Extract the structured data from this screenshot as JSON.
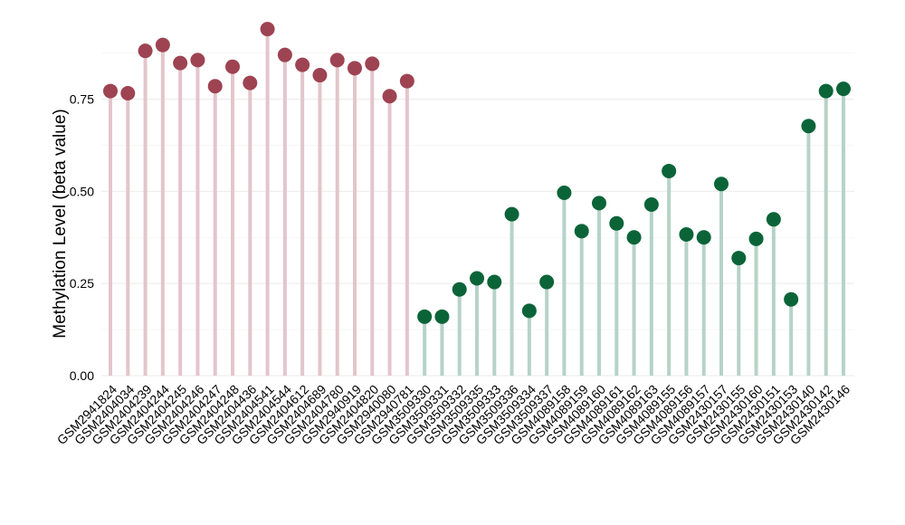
{
  "chart_data": {
    "type": "lollipop",
    "title": "",
    "xlabel": "",
    "ylabel": "Methylation Level (beta value)",
    "ylim": [
      0,
      0.96
    ],
    "yticks": [
      "0.00",
      "0.25",
      "0.50",
      "0.75"
    ],
    "grid": true,
    "legend": "none",
    "series": [
      {
        "color": "#9e4352",
        "stem_color": "#e3c5cb",
        "categories": [
          "GSM2941824",
          "GSM2404034",
          "GSM2404239",
          "GSM2404244",
          "GSM2404245",
          "GSM2404246",
          "GSM2404247",
          "GSM2404248",
          "GSM2404436",
          "GSM2404541",
          "GSM2404544",
          "GSM2404612",
          "GSM2404689",
          "GSM2404780",
          "GSM2940919",
          "GSM2404820",
          "GSM2940080",
          "GSM2940781"
        ],
        "values": [
          0.772,
          0.766,
          0.881,
          0.897,
          0.848,
          0.856,
          0.785,
          0.838,
          0.794,
          0.94,
          0.87,
          0.843,
          0.815,
          0.856,
          0.834,
          0.846,
          0.758,
          0.799
        ]
      },
      {
        "color": "#0b6438",
        "stem_color": "#b6d3c8",
        "categories": [
          "GSM3509330",
          "GSM3509331",
          "GSM3509332",
          "GSM3509335",
          "GSM3509333",
          "GSM3509336",
          "GSM3509334",
          "GSM3509337",
          "GSM4089158",
          "GSM4089159",
          "GSM4089160",
          "GSM4089161",
          "GSM4089162",
          "GSM4089163",
          "GSM4089155",
          "GSM4089156",
          "GSM4089157",
          "GSM2430157",
          "GSM2430155",
          "GSM2430160",
          "GSM2430151",
          "GSM2430153",
          "GSM2430140",
          "GSM2430142",
          "GSM2430146"
        ],
        "values": [
          0.16,
          0.16,
          0.234,
          0.264,
          0.254,
          0.438,
          0.176,
          0.254,
          0.496,
          0.392,
          0.468,
          0.413,
          0.375,
          0.464,
          0.555,
          0.383,
          0.375,
          0.52,
          0.319,
          0.371,
          0.424,
          0.207,
          0.677,
          0.772,
          0.778
        ]
      }
    ]
  }
}
